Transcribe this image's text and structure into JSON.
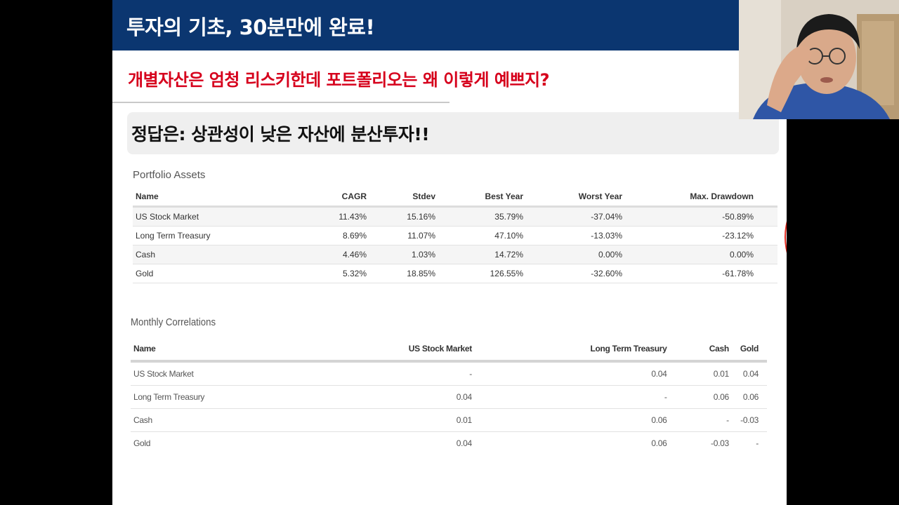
{
  "slide": {
    "banner_title": "투자의 기초, 30분만에 완료!",
    "subtitle": "개별자산은 엄청 리스키한데 포트폴리오는 왜 이렇게 예쁘지?",
    "answer": "정답은: 상관성이 낮은 자산에 분산투자!!"
  },
  "portfolio_assets": {
    "title": "Portfolio Assets",
    "headers": [
      "Name",
      "CAGR",
      "Stdev",
      "Best Year",
      "Worst Year",
      "Max. Drawdown"
    ],
    "rows": [
      [
        "US Stock Market",
        "11.43%",
        "15.16%",
        "35.79%",
        "-37.04%",
        "-50.89%"
      ],
      [
        "Long Term Treasury",
        "8.69%",
        "11.07%",
        "47.10%",
        "-13.03%",
        "-23.12%"
      ],
      [
        "Cash",
        "4.46%",
        "1.03%",
        "14.72%",
        "0.00%",
        "0.00%"
      ],
      [
        "Gold",
        "5.32%",
        "18.85%",
        "126.55%",
        "-32.60%",
        "-61.78%"
      ]
    ]
  },
  "monthly_correlations": {
    "title": "Monthly Correlations",
    "headers": [
      "Name",
      "US Stock Market",
      "Long Term Treasury",
      "Cash",
      "Gold"
    ],
    "rows": [
      [
        "US Stock Market",
        "-",
        "0.04",
        "0.01",
        "0.04"
      ],
      [
        "Long Term Treasury",
        "0.04",
        "-",
        "0.06",
        "0.06"
      ],
      [
        "Cash",
        "0.01",
        "0.06",
        "-",
        "-0.03"
      ],
      [
        "Gold",
        "0.04",
        "0.06",
        "-0.03",
        "-"
      ]
    ]
  },
  "colors": {
    "banner": "#0b3670",
    "subtitle": "#d6001c",
    "circle": "#e0281d"
  }
}
